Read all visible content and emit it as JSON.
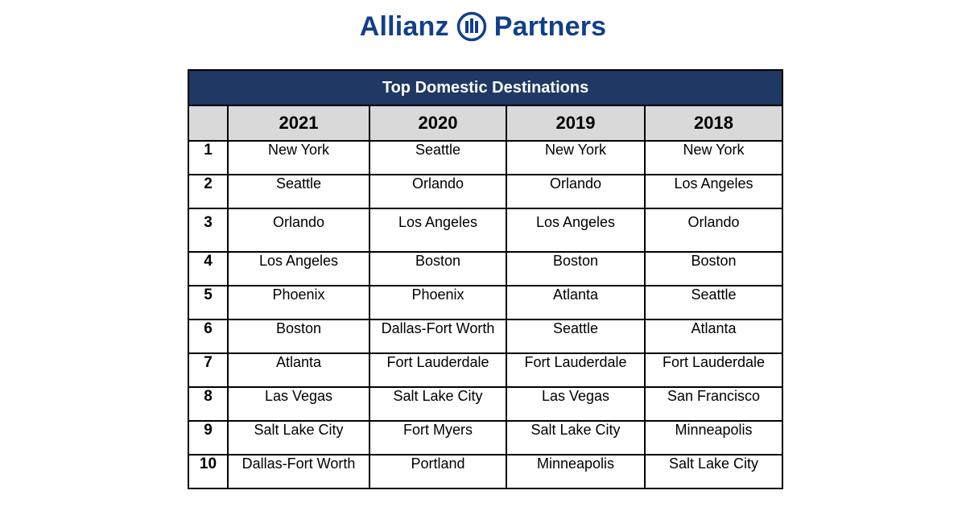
{
  "logo": {
    "word_left": "Allianz",
    "word_right": "Partners",
    "brand_color": "#123f8c",
    "mark_icon": "allianz-eagle-columns-icon"
  },
  "table": {
    "title": "Top Domestic Destinations",
    "header_color": "#1f3864",
    "years": [
      "2021",
      "2020",
      "2019",
      "2018"
    ],
    "rows": [
      {
        "rank": "1",
        "cities": [
          "New York",
          "Seattle",
          "New York",
          "New York"
        ]
      },
      {
        "rank": "2",
        "cities": [
          "Seattle",
          "Orlando",
          "Orlando",
          "Los Angeles"
        ]
      },
      {
        "rank": "3",
        "cities": [
          "Orlando",
          "Los Angeles",
          "Los Angeles",
          "Orlando"
        ]
      },
      {
        "rank": "4",
        "cities": [
          "Los Angeles",
          "Boston",
          "Boston",
          "Boston"
        ]
      },
      {
        "rank": "5",
        "cities": [
          "Phoenix",
          "Phoenix",
          "Atlanta",
          "Seattle"
        ]
      },
      {
        "rank": "6",
        "cities": [
          "Boston",
          "Dallas-Fort Worth",
          "Seattle",
          "Atlanta"
        ]
      },
      {
        "rank": "7",
        "cities": [
          "Atlanta",
          "Fort Lauderdale",
          "Fort Lauderdale",
          "Fort Lauderdale"
        ]
      },
      {
        "rank": "8",
        "cities": [
          "Las Vegas",
          "Salt Lake City",
          "Las Vegas",
          "San Francisco"
        ]
      },
      {
        "rank": "9",
        "cities": [
          "Salt Lake City",
          "Fort Myers",
          "Salt Lake City",
          "Minneapolis"
        ]
      },
      {
        "rank": "10",
        "cities": [
          "Dallas-Fort Worth",
          "Portland",
          "Minneapolis",
          "Salt Lake City"
        ]
      }
    ]
  }
}
